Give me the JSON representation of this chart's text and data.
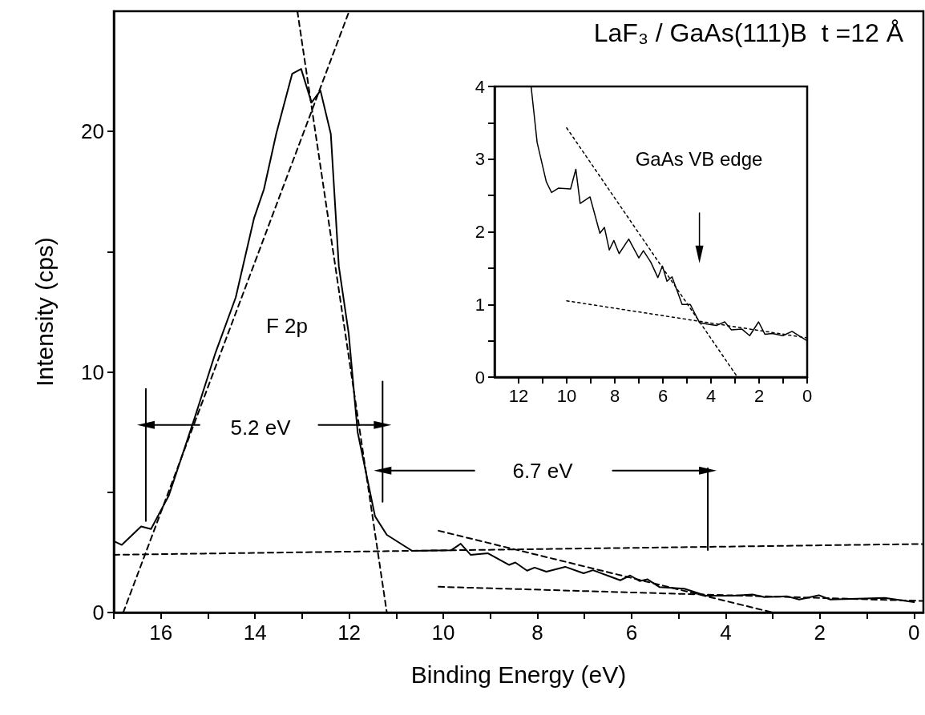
{
  "chart_data": [
    {
      "type": "line",
      "title": "LaF₃ / GaAs(111)B  t =12 Å",
      "xlabel": "Binding Energy (eV)",
      "ylabel": "Intensity (cps)",
      "xlim": [
        17,
        -0.2
      ],
      "xticks": [
        {
          "value": 17,
          "label": null
        },
        16,
        {
          "value": 15,
          "label": null
        },
        14,
        {
          "value": 13,
          "label": null
        },
        12,
        {
          "value": 11,
          "label": null
        },
        10,
        {
          "value": 9,
          "label": null
        },
        8,
        {
          "value": 7,
          "label": null
        },
        6,
        {
          "value": 5,
          "label": null
        },
        4,
        {
          "value": 3,
          "label": null
        },
        2,
        {
          "value": 1,
          "label": null
        },
        0
      ],
      "ylim": [
        0,
        25
      ],
      "yticks": [
        0,
        {
          "value": 5,
          "label": null
        },
        10,
        {
          "value": 15,
          "label": null
        },
        20
      ],
      "grid": false,
      "marker": "none",
      "line_style": "solid",
      "series": [
        {
          "color": "#000000",
          "x": [
            17.0,
            16.83,
            16.42,
            16.21,
            15.83,
            15.27,
            14.84,
            14.41,
            14.02,
            13.81,
            13.55,
            13.21,
            13.02,
            12.8,
            12.61,
            12.39,
            12.22,
            12.01,
            11.82,
            11.45,
            11.2,
            10.66,
            9.83,
            9.63,
            9.42,
            9.05,
            8.6,
            8.47,
            8.22,
            8.06,
            7.81,
            7.41,
            7.02,
            6.82,
            6.24,
            6.03,
            5.83,
            5.66,
            5.41,
            4.88,
            4.42,
            3.84,
            3.43,
            3.18,
            2.69,
            2.44,
            2.02,
            1.78,
            0.62,
            0.0
          ],
          "values": [
            2.97,
            2.81,
            3.58,
            3.47,
            4.87,
            8.17,
            10.8,
            13.1,
            16.4,
            17.6,
            19.9,
            22.4,
            22.6,
            21.2,
            21.7,
            19.9,
            14.4,
            11.6,
            7.5,
            4.0,
            3.23,
            2.56,
            2.59,
            2.86,
            2.4,
            2.46,
            1.98,
            2.08,
            1.74,
            1.87,
            1.7,
            1.9,
            1.63,
            1.76,
            1.34,
            1.54,
            1.31,
            1.38,
            1.06,
            0.99,
            0.7,
            0.7,
            0.75,
            0.64,
            0.67,
            0.54,
            0.72,
            0.54,
            0.61,
            0.43
          ]
        },
        {
          "color": "#000000",
          "line_style": "dashed",
          "x": [
            16.8,
            12.0
          ],
          "values": [
            0,
            25
          ]
        },
        {
          "color": "#000000",
          "line_style": "dashed",
          "x": [
            13.1,
            11.2
          ],
          "values": [
            25,
            0
          ]
        },
        {
          "color": "#000000",
          "line_style": "dashed",
          "x": [
            17,
            -0.2
          ],
          "values": [
            2.4,
            2.85
          ]
        },
        {
          "color": "#000000",
          "line_style": "dashed",
          "x": [
            10.1,
            3.0
          ],
          "values": [
            3.4,
            0
          ]
        },
        {
          "color": "#000000",
          "line_style": "dashed",
          "x": [
            10.1,
            -0.2
          ],
          "values": [
            1.07,
            0.48
          ]
        },
        {
          "color": "#000000",
          "x": [
            16.32,
            16.32
          ],
          "values": [
            3.8,
            9.3
          ]
        },
        {
          "color": "#000000",
          "x": [
            11.29,
            11.29
          ],
          "values": [
            4.6,
            9.6
          ]
        },
        {
          "color": "#000000",
          "x": [
            4.38,
            4.38
          ],
          "values": [
            2.6,
            6.0
          ]
        },
        {
          "color": "#000000",
          "marker": "triangle",
          "x": [
            16.32,
            15.18
          ],
          "values": [
            7.8,
            7.8
          ]
        },
        {
          "color": "#000000",
          "marker": "triangle",
          "x": [
            11.29,
            12.65
          ],
          "values": [
            7.8,
            7.8
          ]
        },
        {
          "color": "#000000",
          "marker": "triangle",
          "x": [
            11.29,
            9.34
          ],
          "values": [
            5.9,
            5.9
          ]
        },
        {
          "color": "#000000",
          "marker": "triangle",
          "x": [
            4.38,
            6.4
          ],
          "values": [
            5.9,
            5.9
          ]
        }
      ],
      "annotations": [
        "F 2p",
        "5.2 eV",
        "6.7 eV"
      ]
    },
    {
      "type": "line",
      "xlim": [
        13,
        0
      ],
      "xticks": [
        0,
        {
          "value": 1,
          "label": null
        },
        2,
        {
          "value": 3,
          "label": null
        },
        4,
        {
          "value": 5,
          "label": null
        },
        6,
        {
          "value": 7,
          "label": null
        },
        8,
        {
          "value": 9,
          "label": null
        },
        10,
        {
          "value": 11,
          "label": null
        },
        12
      ],
      "ylim": [
        0,
        4
      ],
      "yticks": [
        0,
        {
          "value": 0.5,
          "label": null
        },
        1,
        {
          "value": 1.5,
          "label": null
        },
        2,
        {
          "value": 2.5,
          "label": null
        },
        3,
        {
          "value": 3.5,
          "label": null
        },
        4
      ],
      "grid": false,
      "marker": "none",
      "line_style": "solid",
      "series": [
        {
          "color": "#000000",
          "x": [
            11.48,
            11.23,
            10.85,
            10.63,
            10.35,
            9.84,
            9.62,
            9.44,
            9.03,
            8.62,
            8.43,
            8.23,
            8.04,
            7.82,
            7.42,
            7.0,
            6.81,
            6.5,
            6.21,
            6.02,
            5.83,
            5.62,
            5.2,
            4.86,
            4.48,
            4.16,
            3.78,
            3.43,
            3.15,
            2.71,
            2.39,
            2.02,
            1.76,
            1.45,
            1.01,
            0.63,
            0.0
          ],
          "values": [
            4.0,
            3.23,
            2.69,
            2.54,
            2.6,
            2.59,
            2.86,
            2.39,
            2.48,
            1.98,
            2.06,
            1.75,
            1.88,
            1.7,
            1.9,
            1.64,
            1.74,
            1.58,
            1.37,
            1.53,
            1.32,
            1.38,
            1.0,
            1.0,
            0.75,
            0.73,
            0.71,
            0.76,
            0.65,
            0.66,
            0.57,
            0.76,
            0.59,
            0.6,
            0.57,
            0.63,
            0.5
          ]
        },
        {
          "color": "#000000",
          "line_style": "dotted",
          "x": [
            10.0,
            2.9
          ],
          "values": [
            3.43,
            0
          ]
        },
        {
          "color": "#000000",
          "line_style": "dotted",
          "x": [
            10.0,
            0
          ],
          "values": [
            1.05,
            0.54
          ]
        },
        {
          "color": "#000000",
          "marker": "triangle",
          "x": [
            4.48,
            4.48
          ],
          "values": [
            1.69,
            2.26
          ]
        }
      ],
      "annotations": [
        "GaAs VB edge"
      ]
    }
  ]
}
